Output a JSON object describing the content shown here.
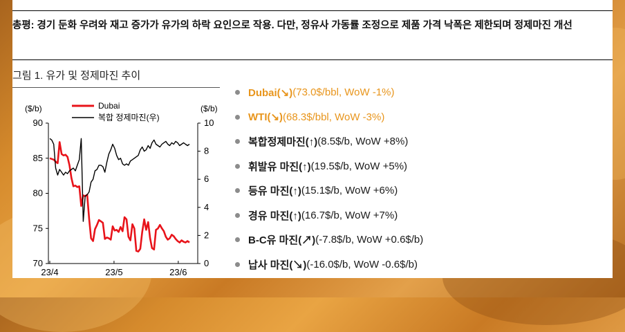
{
  "summary": {
    "text": "총평: 경기 둔화 우려와 재고 증가가 유가의 하락 요인으로 작용. 다만, 정유사 가동률 조정으로 제품 가격 낙폭은 제한되며 정제마진 개선"
  },
  "figure": {
    "title": "그림 1. 유가 및 정제마진 추이"
  },
  "bullets": [
    {
      "name": "Dubai(↘)",
      "detail": "(73.0$/bbl, WoW -1%)",
      "highlight": true
    },
    {
      "name": "WTI(↘)",
      "detail": "(68.3$/bbl, WoW -3%)",
      "highlight": true
    },
    {
      "name": "복합정제마진(↑)",
      "detail": "(8.5$/b, WoW +8%)",
      "highlight": false
    },
    {
      "name": "휘발유 마진(↑)",
      "detail": " (19.5$/b, WoW +5%)",
      "highlight": false
    },
    {
      "name": "등유 마진(↑)",
      "detail": " (15.1$/b, WoW +6%)",
      "highlight": false
    },
    {
      "name": "경유 마진(↑)",
      "detail": " (16.7$/b, WoW +7%)",
      "highlight": false
    },
    {
      "name": "B-C유 마진(↗)",
      "detail": " (-7.8$/b, WoW +0.6$/b)",
      "highlight": false
    },
    {
      "name": "납사 마진(↘)",
      "detail": " (-16.0$/b, WoW -0.6$/b)",
      "highlight": false
    }
  ],
  "colors": {
    "dubai": "#e8131a",
    "margin": "#000000",
    "highlight": "#e8951c"
  },
  "chart_data": {
    "type": "line",
    "left_unit": "($/b)",
    "right_unit": "($/b)",
    "y_left_lim": [
      70,
      90
    ],
    "y_left_ticks": [
      "70",
      "75",
      "80",
      "85",
      "90"
    ],
    "y_right_lim": [
      0,
      10
    ],
    "y_right_ticks": [
      "0",
      "2",
      "4",
      "6",
      "8",
      "10"
    ],
    "x_ticks": [
      "23/4",
      "23/5",
      "23/6"
    ],
    "legend_position": "top-left",
    "series": [
      {
        "name": "Dubai",
        "axis": "left",
        "x": [
          0,
          1,
          2,
          3,
          4,
          5,
          6,
          7,
          8,
          9,
          10,
          11,
          12,
          13,
          14,
          15,
          16,
          17,
          18,
          19,
          20,
          21,
          22,
          23,
          24,
          25,
          26,
          27,
          28,
          29,
          30,
          31,
          32,
          33,
          34,
          35,
          36,
          37,
          38,
          39,
          40,
          41,
          42,
          43,
          44,
          45,
          46,
          47,
          48,
          49,
          50,
          51,
          52,
          53,
          54,
          55,
          56,
          57,
          58,
          59,
          60,
          61,
          62,
          63,
          64,
          65,
          66,
          67,
          68,
          69,
          70,
          71
        ],
        "values": [
          85.0,
          84.9,
          84.8,
          84.5,
          84.3,
          87.3,
          85.6,
          85.4,
          85.5,
          85.2,
          84.0,
          82.2,
          81.0,
          81.1,
          80.9,
          81.0,
          78.2,
          79.7,
          79.6,
          79.8,
          76.4,
          73.6,
          73.2,
          74.9,
          75.5,
          76.2,
          76.0,
          75.8,
          73.5,
          73.7,
          73.6,
          73.4,
          75.3,
          74.7,
          74.8,
          74.5,
          75.2,
          74.6,
          76.6,
          76.3,
          73.8,
          73.3,
          75.6,
          75.0,
          71.8,
          71.7,
          72.1,
          74.5,
          76.3,
          74.8,
          75.9,
          73.6,
          72.2,
          72.0,
          74.8,
          75.0,
          75.5,
          75.0,
          74.6,
          73.8,
          73.4,
          73.6,
          74.1,
          73.9,
          73.5,
          73.2,
          73.0,
          73.3,
          73.1,
          73.0,
          73.2,
          73.0
        ]
      },
      {
        "name": "복합 정제마진(우)",
        "axis": "right",
        "x": [
          0,
          1,
          2,
          3,
          4,
          5,
          6,
          7,
          8,
          9,
          10,
          11,
          12,
          13,
          14,
          15,
          16,
          17,
          18,
          19,
          20,
          21,
          22,
          23,
          24,
          25,
          26,
          27,
          28,
          29,
          30,
          31,
          32,
          33,
          34,
          35,
          36,
          37,
          38,
          39,
          40,
          41,
          42,
          43,
          44,
          45,
          46,
          47,
          48,
          49,
          50,
          51,
          52,
          53,
          54,
          55,
          56,
          57,
          58,
          59,
          60,
          61,
          62,
          63,
          64,
          65,
          66,
          67,
          68,
          69,
          70,
          71
        ],
        "values": [
          8.9,
          8.8,
          8.5,
          6.8,
          6.3,
          6.7,
          6.5,
          6.3,
          6.5,
          6.4,
          6.6,
          6.7,
          6.8,
          6.6,
          7.0,
          7.4,
          8.9,
          3.0,
          4.8,
          4.9,
          5.1,
          5.8,
          6.0,
          6.6,
          6.7,
          7.0,
          7.0,
          6.9,
          6.5,
          7.2,
          7.8,
          8.1,
          8.5,
          8.2,
          7.7,
          7.4,
          7.5,
          7.1,
          7.0,
          7.1,
          7.0,
          7.3,
          7.4,
          7.5,
          7.6,
          7.7,
          8.1,
          8.3,
          8.0,
          8.1,
          8.4,
          8.2,
          8.6,
          8.8,
          8.5,
          8.4,
          8.3,
          8.5,
          8.6,
          8.7,
          8.5,
          8.4,
          8.6,
          8.5,
          8.7,
          8.6,
          8.4,
          8.5,
          8.6,
          8.5,
          8.4,
          8.5
        ]
      }
    ]
  }
}
